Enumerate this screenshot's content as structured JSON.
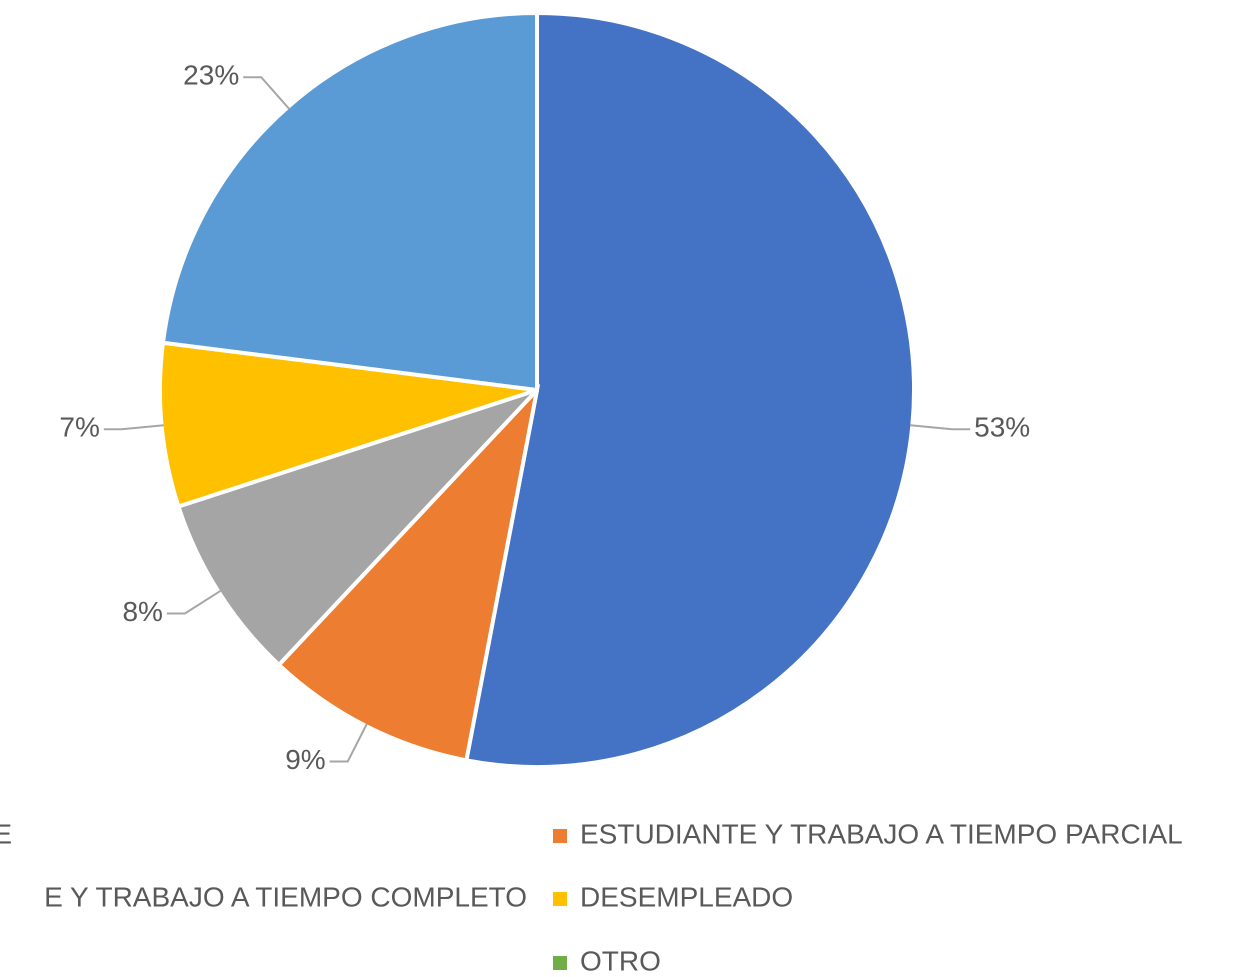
{
  "chart_data": {
    "type": "pie",
    "categories": [
      "E",
      "ESTUDIANTE Y TRABAJO A TIEMPO PARCIAL",
      "E Y TRABAJO A TIEMPO COMPLETO",
      "DESEMPLEADO",
      null,
      "OTRO"
    ],
    "values": [
      53,
      9,
      8,
      7,
      23,
      0
    ],
    "value_labels": [
      "53%",
      "9%",
      "8%",
      "7%",
      "23%",
      null
    ],
    "colors": [
      "#4472c4",
      "#ed7d31",
      "#a5a5a5",
      "#ffc000",
      "#5b9bd5",
      "#70ad47"
    ],
    "legend": "bottom"
  }
}
